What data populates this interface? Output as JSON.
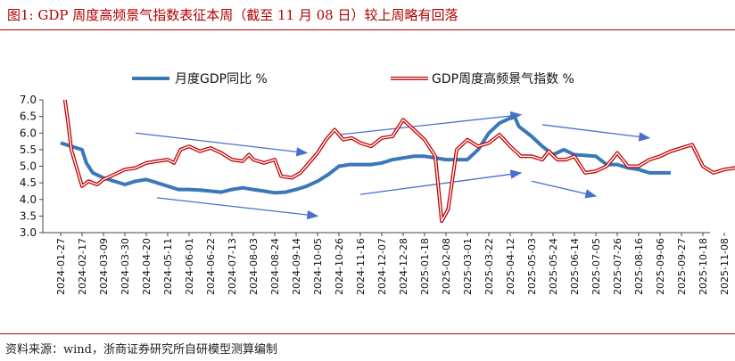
{
  "title": "图1:   GDP 周度高频景气指数表征本周（截至 11 月 08 日）较上周略有回落",
  "source": "资料来源：wind，浙商证券研究所自研模型测算编制",
  "colors": {
    "monthly": "#3a78b8",
    "weekly_outer": "#c00000",
    "weekly_inner": "#ffffff",
    "arrow": "#4a6fd0",
    "accent": "#b00000"
  },
  "chart_data": {
    "type": "line",
    "ylim": [
      3.0,
      7.0
    ],
    "yticks": [
      "3.0",
      "3.5",
      "4.0",
      "4.5",
      "5.0",
      "5.5",
      "6.0",
      "6.5",
      "7.0"
    ],
    "xticks": [
      "2024-01-27",
      "2024-02-17",
      "2024-03-09",
      "2024-03-30",
      "2024-04-20",
      "2024-05-11",
      "2024-06-01",
      "2024-06-22",
      "2024-07-13",
      "2024-08-03",
      "2024-08-24",
      "2024-09-14",
      "2024-10-05",
      "2024-10-26",
      "2024-11-16",
      "2024-12-07",
      "2024-12-28",
      "2025-01-18",
      "2025-02-08",
      "2025-03-01",
      "2025-03-22",
      "2025-04-12",
      "2025-05-03",
      "2025-05-24",
      "2025-06-14",
      "2025-07-05",
      "2025-07-26",
      "2025-08-16",
      "2025-09-06",
      "2025-09-27",
      "2025-10-18",
      "2025-11-08"
    ],
    "series": [
      {
        "name": "月度GDP同比 %",
        "style": "blue-thick",
        "points": [
          [
            0,
            5.7
          ],
          [
            0.5,
            5.6
          ],
          [
            1,
            5.5
          ],
          [
            1.2,
            5.1
          ],
          [
            1.5,
            4.8
          ],
          [
            2,
            4.65
          ],
          [
            3,
            4.45
          ],
          [
            3.5,
            4.55
          ],
          [
            4,
            4.6
          ],
          [
            5,
            4.4
          ],
          [
            5.5,
            4.3
          ],
          [
            6,
            4.3
          ],
          [
            6.5,
            4.28
          ],
          [
            7,
            4.25
          ],
          [
            7.5,
            4.22
          ],
          [
            8,
            4.3
          ],
          [
            8.5,
            4.35
          ],
          [
            9,
            4.3
          ],
          [
            9.5,
            4.25
          ],
          [
            10,
            4.2
          ],
          [
            10.5,
            4.22
          ],
          [
            11,
            4.3
          ],
          [
            11.5,
            4.4
          ],
          [
            12,
            4.55
          ],
          [
            12.5,
            4.75
          ],
          [
            13,
            5.0
          ],
          [
            13.5,
            5.05
          ],
          [
            14,
            5.05
          ],
          [
            14.5,
            5.05
          ],
          [
            15,
            5.1
          ],
          [
            15.5,
            5.2
          ],
          [
            16,
            5.25
          ],
          [
            16.5,
            5.3
          ],
          [
            17,
            5.3
          ],
          [
            17.5,
            5.25
          ],
          [
            18,
            5.2
          ],
          [
            18.5,
            5.2
          ],
          [
            19,
            5.2
          ],
          [
            19.5,
            5.5
          ],
          [
            20,
            6.0
          ],
          [
            20.5,
            6.3
          ],
          [
            21,
            6.45
          ],
          [
            21.2,
            6.5
          ],
          [
            21.4,
            6.2
          ],
          [
            22,
            5.9
          ],
          [
            22.5,
            5.6
          ],
          [
            23,
            5.35
          ],
          [
            23.5,
            5.5
          ],
          [
            24,
            5.35
          ],
          [
            25,
            5.3
          ],
          [
            25.5,
            5.05
          ],
          [
            26,
            5.05
          ],
          [
            26.5,
            4.95
          ],
          [
            27,
            4.9
          ],
          [
            27.5,
            4.8
          ],
          [
            28,
            4.8
          ],
          [
            28.5,
            4.8
          ]
        ]
      },
      {
        "name": "GDP周度高频景气指数 %",
        "style": "red-double",
        "points": [
          [
            0.2,
            7.0
          ],
          [
            0.35,
            6.3
          ],
          [
            0.5,
            5.5
          ],
          [
            1,
            4.4
          ],
          [
            1.3,
            4.55
          ],
          [
            1.5,
            4.5
          ],
          [
            1.7,
            4.45
          ],
          [
            2,
            4.6
          ],
          [
            2.5,
            4.75
          ],
          [
            3,
            4.9
          ],
          [
            3.5,
            4.95
          ],
          [
            4,
            5.1
          ],
          [
            4.5,
            5.15
          ],
          [
            5,
            5.2
          ],
          [
            5.3,
            5.1
          ],
          [
            5.6,
            5.5
          ],
          [
            6,
            5.6
          ],
          [
            6.5,
            5.45
          ],
          [
            7,
            5.55
          ],
          [
            7.5,
            5.4
          ],
          [
            8,
            5.2
          ],
          [
            8.5,
            5.15
          ],
          [
            8.8,
            5.35
          ],
          [
            9,
            5.2
          ],
          [
            9.5,
            5.1
          ],
          [
            10,
            5.2
          ],
          [
            10.3,
            4.7
          ],
          [
            10.8,
            4.65
          ],
          [
            11.2,
            4.8
          ],
          [
            11.6,
            5.1
          ],
          [
            12,
            5.4
          ],
          [
            12.4,
            5.8
          ],
          [
            12.8,
            6.1
          ],
          [
            13.2,
            5.8
          ],
          [
            13.6,
            5.85
          ],
          [
            14,
            5.7
          ],
          [
            14.5,
            5.6
          ],
          [
            15,
            5.85
          ],
          [
            15.5,
            5.9
          ],
          [
            16,
            6.4
          ],
          [
            16.5,
            6.1
          ],
          [
            17,
            5.8
          ],
          [
            17.5,
            5.3
          ],
          [
            17.8,
            3.35
          ],
          [
            18.1,
            3.7
          ],
          [
            18.5,
            5.5
          ],
          [
            19,
            5.8
          ],
          [
            19.5,
            5.6
          ],
          [
            20,
            5.7
          ],
          [
            20.5,
            5.95
          ],
          [
            21,
            5.6
          ],
          [
            21.5,
            5.3
          ],
          [
            22,
            5.3
          ],
          [
            22.5,
            5.2
          ],
          [
            22.8,
            5.45
          ],
          [
            23.2,
            5.2
          ],
          [
            23.6,
            5.2
          ],
          [
            24,
            5.3
          ],
          [
            24.5,
            4.8
          ],
          [
            25,
            4.85
          ],
          [
            25.5,
            5.0
          ],
          [
            26,
            5.4
          ],
          [
            26.5,
            5.0
          ],
          [
            27,
            5.0
          ],
          [
            27.5,
            5.2
          ],
          [
            28,
            5.3
          ],
          [
            28.5,
            5.45
          ],
          [
            29,
            5.55
          ],
          [
            29.5,
            5.65
          ],
          [
            30,
            5.0
          ],
          [
            30.5,
            4.8
          ],
          [
            31,
            4.9
          ],
          [
            31.5,
            4.95
          ],
          [
            32,
            4.75
          ]
        ]
      }
    ],
    "trend_arrows": [
      [
        [
          3.5,
          6.0
        ],
        [
          11.5,
          5.4
        ]
      ],
      [
        [
          4.5,
          4.05
        ],
        [
          12,
          3.5
        ]
      ],
      [
        [
          13,
          5.95
        ],
        [
          21.5,
          6.55
        ]
      ],
      [
        [
          14,
          4.15
        ],
        [
          21.5,
          4.8
        ]
      ],
      [
        [
          22,
          4.55
        ],
        [
          25,
          4.1
        ]
      ],
      [
        [
          22.5,
          6.25
        ],
        [
          27.5,
          5.85
        ]
      ]
    ]
  }
}
